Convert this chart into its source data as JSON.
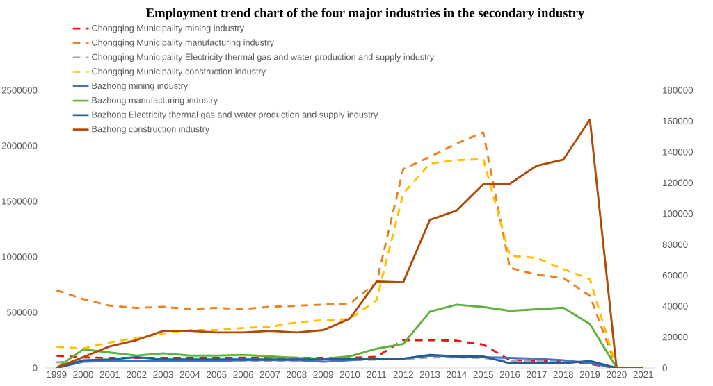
{
  "chart_data": {
    "type": "line",
    "title": "Employment trend chart of the four major industries in the secondary industry",
    "categories": [
      "1999",
      "2000",
      "2001",
      "2002",
      "2003",
      "2004",
      "2005",
      "2006",
      "2007",
      "2008",
      "2009",
      "2010",
      "2011",
      "2012",
      "2013",
      "2014",
      "2015",
      "2016",
      "2017",
      "2018",
      "2019",
      "2020",
      "2021"
    ],
    "ylim": [
      0,
      2500000
    ],
    "yticks": [
      0,
      500000,
      1000000,
      1500000,
      2000000,
      2500000
    ],
    "y2lim": [
      0,
      180000
    ],
    "y2ticks": [
      0,
      20000,
      40000,
      60000,
      80000,
      100000,
      120000,
      140000,
      160000,
      180000
    ],
    "legend": "top left",
    "series": [
      {
        "name": "Chongqing Municipality mining industry",
        "color": "#e8150f",
        "line_style": "dashed",
        "values": [
          110000,
          95000,
          90000,
          90000,
          90000,
          90000,
          90000,
          92000,
          92000,
          92000,
          90000,
          90000,
          100000,
          250000,
          250000,
          245000,
          210000,
          70000,
          65000,
          60000,
          35000,
          0,
          null
        ]
      },
      {
        "name": "Chongqing Municipality manufacturing industry",
        "color": "#f07f20",
        "line_style": "dashed",
        "values": [
          700000,
          620000,
          560000,
          540000,
          550000,
          530000,
          540000,
          530000,
          550000,
          560000,
          570000,
          580000,
          770000,
          1790000,
          1900000,
          2020000,
          2120000,
          900000,
          840000,
          810000,
          650000,
          0,
          null
        ]
      },
      {
        "name": "Chongqing Municipality Electricity thermal gas and water production and supply industry",
        "color": "#a5a5a5",
        "line_style": "dashed",
        "values": [
          50000,
          60000,
          60000,
          65000,
          65000,
          65000,
          65000,
          65000,
          65000,
          65000,
          65000,
          70000,
          75000,
          80000,
          95000,
          95000,
          90000,
          60000,
          60000,
          60000,
          50000,
          0,
          null
        ]
      },
      {
        "name": "Chongqing Municipality construction industry",
        "color": "#ffc000",
        "line_style": "dashed",
        "values": [
          190000,
          175000,
          230000,
          270000,
          310000,
          340000,
          340000,
          360000,
          370000,
          410000,
          430000,
          440000,
          610000,
          1570000,
          1840000,
          1870000,
          1880000,
          1010000,
          990000,
          890000,
          800000,
          0,
          null
        ]
      },
      {
        "name": "Bazhong mining industry",
        "color": "#4472c4",
        "line_style": "solid",
        "axis": "y2",
        "values": [
          0,
          4000,
          4500,
          4500,
          4500,
          4500,
          4500,
          5000,
          5000,
          5000,
          4000,
          5000,
          6000,
          6000,
          8000,
          7500,
          7000,
          6500,
          6000,
          5000,
          3000,
          0,
          null
        ]
      },
      {
        "name": "Bazhong manufacturing industry",
        "color": "#5fb33b",
        "line_style": "solid",
        "axis": "y2",
        "values": [
          0,
          12000,
          10000,
          8000,
          9500,
          8000,
          8000,
          8500,
          7500,
          6500,
          6000,
          7500,
          12500,
          15500,
          36500,
          41000,
          39500,
          37000,
          38000,
          39000,
          28500,
          0,
          null
        ]
      },
      {
        "name": "Bazhong Electricity thermal gas and water production and supply industry",
        "color": "#255e91",
        "line_style": "solid",
        "axis": "y2",
        "values": [
          0,
          5000,
          5500,
          7000,
          5500,
          5500,
          5500,
          5500,
          5500,
          5500,
          5500,
          6000,
          6000,
          6000,
          8500,
          7500,
          7500,
          3000,
          3000,
          3000,
          4500,
          0,
          null
        ]
      },
      {
        "name": "Bazhong construction industry",
        "color": "#b04a05",
        "line_style": "solid",
        "axis": "y2",
        "values": [
          0,
          7000,
          14000,
          18000,
          24000,
          24000,
          23000,
          23000,
          24000,
          23000,
          24500,
          32000,
          56000,
          55500,
          96000,
          102000,
          119000,
          119500,
          131000,
          135000,
          161000,
          0,
          0
        ]
      }
    ]
  }
}
